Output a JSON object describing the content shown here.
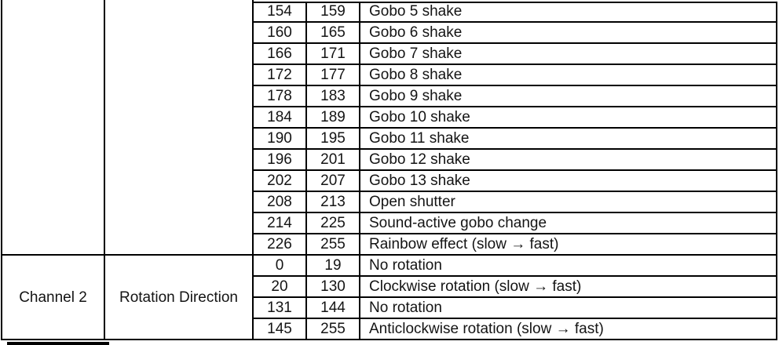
{
  "colors": {
    "background": "#ffffff",
    "border": "#000000",
    "text": "#141414"
  },
  "table": {
    "columns": [
      "channel",
      "function",
      "dmx_from",
      "dmx_to",
      "description"
    ],
    "sections": [
      {
        "channel": "",
        "function": "",
        "rows": [
          {
            "min": "154",
            "max": "159",
            "label": "Gobo 5 shake"
          },
          {
            "min": "160",
            "max": "165",
            "label": "Gobo 6 shake"
          },
          {
            "min": "166",
            "max": "171",
            "label": "Gobo 7 shake"
          },
          {
            "min": "172",
            "max": "177",
            "label": "Gobo 8 shake"
          },
          {
            "min": "178",
            "max": "183",
            "label": "Gobo 9 shake"
          },
          {
            "min": "184",
            "max": "189",
            "label": "Gobo 10 shake"
          },
          {
            "min": "190",
            "max": "195",
            "label": "Gobo 11 shake"
          },
          {
            "min": "196",
            "max": "201",
            "label": "Gobo 12 shake"
          },
          {
            "min": "202",
            "max": "207",
            "label": "Gobo 13 shake"
          },
          {
            "min": "208",
            "max": "213",
            "label": "Open shutter"
          },
          {
            "min": "214",
            "max": "225",
            "label": "Sound-active gobo change"
          },
          {
            "min": "226",
            "max": "255",
            "label": "Rainbow effect (slow → fast)"
          }
        ]
      },
      {
        "channel": "Channel 2",
        "function": "Rotation Direction",
        "rows": [
          {
            "min": "0",
            "max": "19",
            "label": "No rotation"
          },
          {
            "min": "20",
            "max": "130",
            "label": "Clockwise rotation (slow → fast)"
          },
          {
            "min": "131",
            "max": "144",
            "label": "No rotation"
          },
          {
            "min": "145",
            "max": "255",
            "label": "Anticlockwise rotation (slow → fast)"
          }
        ]
      }
    ]
  }
}
